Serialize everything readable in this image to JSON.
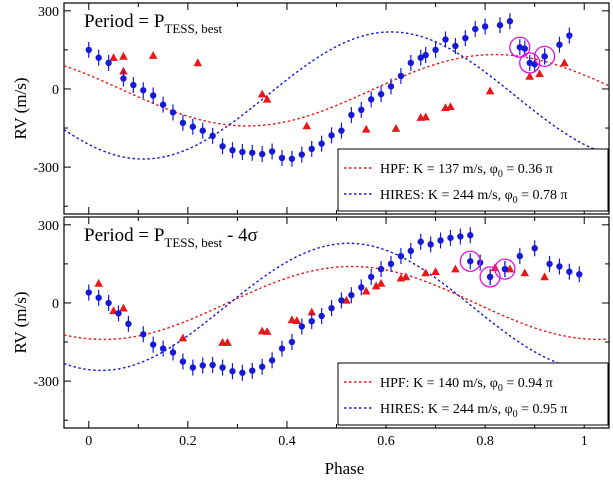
{
  "chart_data": [
    {
      "type": "scatter",
      "title": "",
      "panel_label": {
        "main": "Period = P",
        "sub": "TESS, best",
        "suffix": ""
      },
      "ylabel": "RV (m/s)",
      "xlabel": "",
      "xlim": [
        -0.05,
        1.05
      ],
      "ylim": [
        -480,
        330
      ],
      "yticks": [
        300,
        0,
        -300
      ],
      "ytick_labels": [
        "300",
        "0",
        "-300"
      ],
      "xticks": [
        0,
        0.2,
        0.4,
        0.6,
        0.8,
        1
      ],
      "grid": false,
      "legend_position": "bottom-right",
      "legend": [
        {
          "label": "HPF: K = 137 m/s, φ",
          "sub": "0",
          "tail": " = 0.36 π",
          "color": "#e8181a"
        },
        {
          "label": "HIRES: K = 244 m/s, φ",
          "sub": "0",
          "tail": " = 0.78 π",
          "color": "#1619d8"
        }
      ],
      "series": [
        {
          "kind": "hpf",
          "color": "#e8181a",
          "marker": "triangle",
          "model": {
            "K": 137,
            "phi0": 0.36,
            "offset": -5
          },
          "points": [
            [
              0.07,
              125
            ],
            [
              0.05,
              120
            ],
            [
              0.07,
              68
            ],
            [
              0.13,
              128
            ],
            [
              0.22,
              100
            ],
            [
              0.35,
              -20
            ],
            [
              0.36,
              -40
            ],
            [
              0.44,
              -142
            ],
            [
              0.56,
              -155
            ],
            [
              0.62,
              -152
            ],
            [
              0.67,
              -110
            ],
            [
              0.68,
              -108
            ],
            [
              0.72,
              -72
            ],
            [
              0.73,
              -68
            ],
            [
              0.81,
              -8
            ],
            [
              0.89,
              48
            ],
            [
              0.91,
              58
            ],
            [
              0.96,
              100
            ]
          ]
        },
        {
          "kind": "hires",
          "color": "#1619d8",
          "marker": "circle",
          "model": {
            "K": 244,
            "phi0": 0.78,
            "offset": -25
          },
          "points": [
            [
              0,
              150
            ],
            [
              0.02,
              120
            ],
            [
              0.04,
              100
            ],
            [
              0.07,
              40
            ],
            [
              0.09,
              15
            ],
            [
              0.11,
              -5
            ],
            [
              0.13,
              -25
            ],
            [
              0.15,
              -60
            ],
            [
              0.17,
              -90
            ],
            [
              0.19,
              -130
            ],
            [
              0.21,
              -145
            ],
            [
              0.23,
              -160
            ],
            [
              0.25,
              -180
            ],
            [
              0.27,
              -220
            ],
            [
              0.29,
              -235
            ],
            [
              0.31,
              -242
            ],
            [
              0.33,
              -245
            ],
            [
              0.35,
              -250
            ],
            [
              0.37,
              -240
            ],
            [
              0.39,
              -265
            ],
            [
              0.41,
              -268
            ],
            [
              0.43,
              -252
            ],
            [
              0.45,
              -230
            ],
            [
              0.47,
              -210
            ],
            [
              0.49,
              -178
            ],
            [
              0.51,
              -160
            ],
            [
              0.53,
              -100
            ],
            [
              0.55,
              -80
            ],
            [
              0.57,
              -40
            ],
            [
              0.59,
              -20
            ],
            [
              0.61,
              10
            ],
            [
              0.63,
              50
            ],
            [
              0.65,
              100
            ],
            [
              0.67,
              120
            ],
            [
              0.68,
              130
            ],
            [
              0.7,
              150
            ],
            [
              0.72,
              190
            ],
            [
              0.74,
              165
            ],
            [
              0.76,
              195
            ],
            [
              0.78,
              230
            ],
            [
              0.8,
              240
            ],
            [
              0.83,
              245
            ],
            [
              0.85,
              260
            ],
            [
              0.88,
              155
            ],
            [
              0.9,
              95
            ],
            [
              0.92,
              125
            ],
            [
              0.95,
              170
            ],
            [
              0.97,
              205
            ]
          ],
          "highlighted": [
            [
              0.87,
              160
            ],
            [
              0.89,
              100
            ],
            [
              0.92,
              125
            ]
          ]
        }
      ]
    },
    {
      "type": "scatter",
      "title": "",
      "panel_label": {
        "main": "Period = P",
        "sub": "TESS, best",
        "suffix": " - 4σ"
      },
      "ylabel": "RV (m/s)",
      "xlabel": "Phase",
      "xlim": [
        -0.05,
        1.05
      ],
      "ylim": [
        -480,
        330
      ],
      "yticks": [
        300,
        0,
        -300
      ],
      "ytick_labels": [
        "300",
        "0",
        "-300"
      ],
      "xticks": [
        0,
        0.2,
        0.4,
        0.6,
        0.8,
        1
      ],
      "xtick_labels": [
        "0",
        "0.2",
        "0.4",
        "0.6",
        "0.8",
        "1"
      ],
      "grid": false,
      "legend_position": "bottom-right",
      "legend": [
        {
          "label": "HPF: K = 140 m/s, φ",
          "sub": "0",
          "tail": " = 0.94 π",
          "color": "#e8181a"
        },
        {
          "label": "HIRES: K = 244 m/s, φ",
          "sub": "0",
          "tail": " = 0.95 π",
          "color": "#1619d8"
        }
      ],
      "series": [
        {
          "kind": "hpf",
          "color": "#e8181a",
          "marker": "triangle",
          "model": {
            "K": 140,
            "phi0": 0.94,
            "offset": 0
          },
          "points": [
            [
              0.02,
              75
            ],
            [
              0.05,
              -30
            ],
            [
              0.07,
              -20
            ],
            [
              0.19,
              -135
            ],
            [
              0.27,
              -152
            ],
            [
              0.28,
              -152
            ],
            [
              0.35,
              -108
            ],
            [
              0.36,
              -110
            ],
            [
              0.41,
              -65
            ],
            [
              0.42,
              -68
            ],
            [
              0.45,
              -35
            ],
            [
              0.52,
              10
            ],
            [
              0.56,
              45
            ],
            [
              0.58,
              65
            ],
            [
              0.59,
              75
            ],
            [
              0.63,
              95
            ],
            [
              0.64,
              100
            ],
            [
              0.68,
              115
            ],
            [
              0.7,
              120
            ],
            [
              0.74,
              130
            ],
            [
              0.82,
              135
            ],
            [
              0.85,
              130
            ],
            [
              0.88,
              115
            ],
            [
              0.92,
              100
            ]
          ]
        },
        {
          "kind": "hires",
          "color": "#1619d8",
          "marker": "circle",
          "model": {
            "K": 244,
            "phi0": 0.95,
            "offset": -15
          },
          "points": [
            [
              0,
              40
            ],
            [
              0.02,
              20
            ],
            [
              0.04,
              0
            ],
            [
              0.06,
              -40
            ],
            [
              0.08,
              -80
            ],
            [
              0.11,
              -120
            ],
            [
              0.13,
              -160
            ],
            [
              0.15,
              -175
            ],
            [
              0.17,
              -190
            ],
            [
              0.19,
              -225
            ],
            [
              0.21,
              -248
            ],
            [
              0.23,
              -240
            ],
            [
              0.25,
              -238
            ],
            [
              0.27,
              -248
            ],
            [
              0.29,
              -262
            ],
            [
              0.31,
              -268
            ],
            [
              0.33,
              -260
            ],
            [
              0.35,
              -245
            ],
            [
              0.37,
              -220
            ],
            [
              0.39,
              -175
            ],
            [
              0.41,
              -150
            ],
            [
              0.43,
              -90
            ],
            [
              0.45,
              -70
            ],
            [
              0.47,
              -50
            ],
            [
              0.49,
              -20
            ],
            [
              0.51,
              10
            ],
            [
              0.53,
              30
            ],
            [
              0.55,
              60
            ],
            [
              0.57,
              100
            ],
            [
              0.59,
              130
            ],
            [
              0.61,
              150
            ],
            [
              0.63,
              180
            ],
            [
              0.65,
              200
            ],
            [
              0.67,
              235
            ],
            [
              0.69,
              225
            ],
            [
              0.71,
              240
            ],
            [
              0.73,
              250
            ],
            [
              0.75,
              255
            ],
            [
              0.77,
              260
            ],
            [
              0.79,
              155
            ],
            [
              0.81,
              100
            ],
            [
              0.84,
              130
            ],
            [
              0.87,
              180
            ],
            [
              0.9,
              210
            ],
            [
              0.93,
              150
            ],
            [
              0.95,
              140
            ],
            [
              0.97,
              120
            ],
            [
              0.99,
              110
            ]
          ],
          "highlighted": [
            [
              0.77,
              160
            ],
            [
              0.81,
              100
            ],
            [
              0.84,
              130
            ]
          ]
        }
      ]
    }
  ]
}
